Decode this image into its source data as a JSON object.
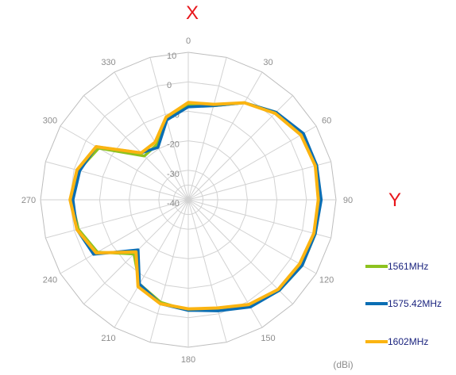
{
  "chart_data": {
    "type": "polar-line",
    "unit": "(dBi)",
    "axis_labels": {
      "x": "X",
      "y": "Y"
    },
    "angle_ticks": [
      "0",
      "30",
      "60",
      "90",
      "120",
      "150",
      "180",
      "210",
      "240",
      "270",
      "300",
      "330"
    ],
    "radial_ticks": [
      "10",
      "0",
      "-10",
      "-20",
      "-30",
      "-40"
    ],
    "rlim": [
      -40,
      10
    ],
    "angle_step_deg": 15,
    "grid": true,
    "legend": "right",
    "series": [
      {
        "name": "1561MHz",
        "color": "#8dc21f",
        "theta": [
          0,
          15,
          30,
          45,
          60,
          75,
          90,
          105,
          120,
          135,
          150,
          165,
          180,
          195,
          210,
          225,
          240,
          255,
          270,
          285,
          300,
          315,
          330,
          345
        ],
        "r": [
          -8.0,
          -7.0,
          -2.0,
          2.0,
          4.5,
          5.0,
          4.5,
          4.5,
          4.5,
          3.5,
          1.5,
          -1.5,
          -2.5,
          -4.0,
          -7.0,
          -14.0,
          -4.5,
          -1.5,
          -0.5,
          -1.5,
          -5.0,
          -19.0,
          -18.5,
          -11.5
        ]
      },
      {
        "name": "1575.42MHz",
        "color": "#0a6eb4",
        "theta": [
          0,
          15,
          30,
          45,
          60,
          75,
          90,
          105,
          120,
          135,
          150,
          165,
          180,
          195,
          210,
          225,
          240,
          255,
          270,
          285,
          300,
          315,
          330,
          345
        ],
        "r": [
          -8.5,
          -7.0,
          -2.0,
          2.0,
          5.0,
          5.0,
          5.0,
          4.5,
          4.5,
          3.5,
          2.0,
          -1.0,
          -2.5,
          -3.5,
          -7.0,
          -16.0,
          -3.0,
          -1.0,
          -1.0,
          -2.0,
          -4.0,
          -17.5,
          -19.5,
          -12.0
        ]
      },
      {
        "name": "1602MHz",
        "color": "#fbb411",
        "theta": [
          0,
          15,
          30,
          45,
          60,
          75,
          90,
          105,
          120,
          135,
          150,
          165,
          180,
          195,
          210,
          225,
          240,
          255,
          270,
          285,
          300,
          315,
          330,
          345
        ],
        "r": [
          -7.0,
          -6.5,
          -2.0,
          1.5,
          4.0,
          4.5,
          4.0,
          4.0,
          3.5,
          3.0,
          1.0,
          -2.0,
          -3.0,
          -3.5,
          -6.0,
          -15.0,
          -4.0,
          -1.0,
          0.0,
          -1.0,
          -4.0,
          -17.5,
          -17.5,
          -11.0
        ]
      }
    ]
  }
}
